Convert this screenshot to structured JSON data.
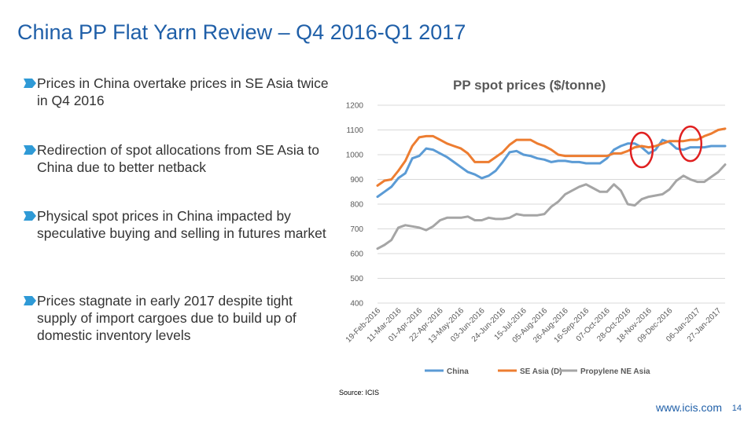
{
  "slide": {
    "title": "China PP Flat Yarn Review – Q4 2016-Q1 2017",
    "bullets": [
      "Prices in China overtake prices in SE Asia twice in Q4 2016",
      "Redirection of spot allocations from SE Asia to China due to better netback",
      "Physical spot prices in China impacted by speculative buying and selling in futures market",
      "Prices stagnate in early 2017 despite tight supply of import cargoes due to build up of domestic inventory levels"
    ],
    "source": "Source: ICIS",
    "footer": "www.icis.com",
    "page_number": "14"
  },
  "colors": {
    "title": "#1f5fa8",
    "bullet_marker": "#2f9ad6",
    "china": "#5b9bd5",
    "se_asia": "#ed7d31",
    "propylene": "#a5a5a5",
    "highlight_circle": "#e02020",
    "gridline": "#d9d9d9"
  },
  "chart_data": {
    "type": "line",
    "title": "PP spot prices ($/tonne)",
    "ylim": [
      400,
      1200
    ],
    "yticks": [
      400,
      500,
      600,
      700,
      800,
      900,
      1000,
      1100,
      1200
    ],
    "grid": true,
    "legend_position": "bottom",
    "x": [
      "19-Feb-2016",
      "26-Feb-2016",
      "04-Mar-2016",
      "11-Mar-2016",
      "18-Mar-2016",
      "25-Mar-2016",
      "01-Apr-2016",
      "08-Apr-2016",
      "15-Apr-2016",
      "22-Apr-2016",
      "29-Apr-2016",
      "06-May-2016",
      "13-May-2016",
      "20-May-2016",
      "27-May-2016",
      "03-Jun-2016",
      "10-Jun-2016",
      "17-Jun-2016",
      "24-Jun-2016",
      "01-Jul-2016",
      "08-Jul-2016",
      "15-Jul-2016",
      "22-Jul-2016",
      "29-Jul-2016",
      "05-Aug-2016",
      "12-Aug-2016",
      "19-Aug-2016",
      "26-Aug-2016",
      "02-Sep-2016",
      "09-Sep-2016",
      "16-Sep-2016",
      "23-Sep-2016",
      "30-Sep-2016",
      "07-Oct-2016",
      "14-Oct-2016",
      "21-Oct-2016",
      "28-Oct-2016",
      "04-Nov-2016",
      "11-Nov-2016",
      "18-Nov-2016",
      "25-Nov-2016",
      "02-Dec-2016",
      "09-Dec-2016",
      "16-Dec-2016",
      "23-Dec-2016",
      "30-Dec-2016",
      "06-Jan-2017",
      "13-Jan-2017",
      "20-Jan-2017",
      "27-Jan-2017",
      "03-Feb-2017"
    ],
    "tick_labels": [
      "19-Feb-2016",
      "11-Mar-2016",
      "01-Apr-2016",
      "22-Apr-2016",
      "13-May-2016",
      "03-Jun-2016",
      "24-Jun-2016",
      "15-Jul-2016",
      "05-Aug-2016",
      "26-Aug-2016",
      "16-Sep-2016",
      "07-Oct-2016",
      "28-Oct-2016",
      "18-Nov-2016",
      "09-Dec-2016",
      "06-Jan-2017",
      "27-Jan-2017"
    ],
    "series": [
      {
        "name": "China",
        "color": "#5b9bd5",
        "values": [
          830,
          850,
          870,
          905,
          925,
          985,
          995,
          1025,
          1020,
          1005,
          990,
          970,
          950,
          930,
          920,
          905,
          915,
          935,
          970,
          1010,
          1015,
          1000,
          995,
          985,
          980,
          970,
          975,
          975,
          970,
          970,
          965,
          965,
          965,
          985,
          1020,
          1035,
          1045,
          1045,
          1030,
          1005,
          1020,
          1060,
          1050,
          1025,
          1020,
          1030,
          1030,
          1030,
          1035,
          1035,
          1035
        ]
      },
      {
        "name": "SE Asia (D)",
        "color": "#ed7d31",
        "values": [
          875,
          895,
          900,
          935,
          975,
          1035,
          1070,
          1075,
          1075,
          1060,
          1045,
          1035,
          1025,
          1005,
          970,
          970,
          970,
          990,
          1010,
          1040,
          1060,
          1060,
          1060,
          1045,
          1035,
          1020,
          1000,
          995,
          995,
          995,
          995,
          995,
          995,
          995,
          1005,
          1005,
          1015,
          1030,
          1035,
          1030,
          1035,
          1045,
          1055,
          1055,
          1055,
          1060,
          1060,
          1075,
          1085,
          1100,
          1105
        ]
      },
      {
        "name": "Propylene NE Asia",
        "color": "#a5a5a5",
        "values": [
          620,
          635,
          655,
          705,
          715,
          710,
          705,
          695,
          710,
          735,
          745,
          745,
          745,
          750,
          735,
          735,
          745,
          740,
          740,
          745,
          760,
          755,
          755,
          755,
          760,
          790,
          810,
          840,
          855,
          870,
          880,
          865,
          850,
          850,
          880,
          855,
          800,
          795,
          820,
          830,
          835,
          840,
          860,
          895,
          915,
          900,
          890,
          890,
          910,
          930,
          960
        ]
      }
    ],
    "highlight_circles_at": [
      "11-Nov-2016",
      "30-Dec-2016"
    ]
  }
}
